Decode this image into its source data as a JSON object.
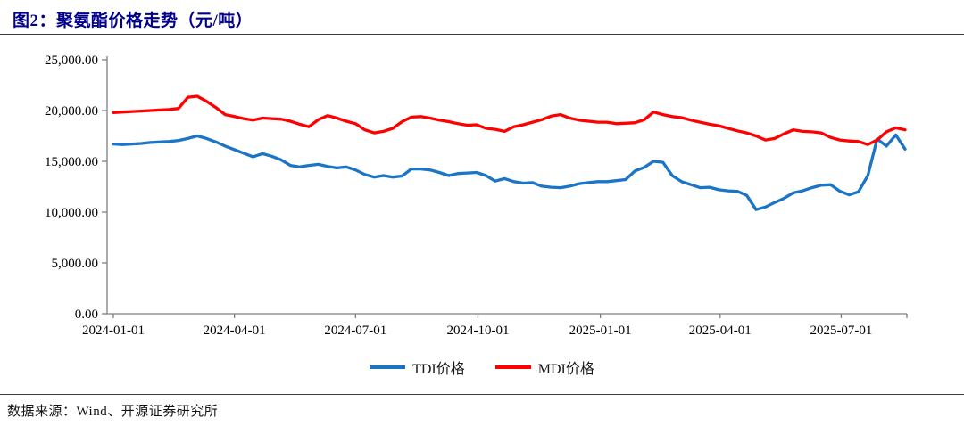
{
  "header": {
    "figure_title": "图2：聚氨酯价格走势（元/吨）"
  },
  "footer": {
    "source": "数据来源：Wind、开源证券研究所"
  },
  "chart_data": {
    "type": "line",
    "title": "聚氨酯价格走势",
    "unit": "元/吨",
    "grid": false,
    "legend_position": "bottom",
    "axis_color": "#7f7f7f",
    "label_color": "#000000",
    "ylim": [
      0,
      25000
    ],
    "y_ticks": [
      0,
      5000,
      10000,
      15000,
      20000,
      25000
    ],
    "x_ticks": [
      "2024-01-01",
      "2024-04-01",
      "2024-07-01",
      "2024-10-01",
      "2025-01-01",
      "2025-04-01",
      "2025-07-01"
    ],
    "x": [
      "2024-01-01",
      "2024-01-08",
      "2024-01-15",
      "2024-01-22",
      "2024-01-29",
      "2024-02-05",
      "2024-02-12",
      "2024-02-19",
      "2024-02-26",
      "2024-03-04",
      "2024-03-11",
      "2024-03-18",
      "2024-03-25",
      "2024-04-01",
      "2024-04-08",
      "2024-04-15",
      "2024-04-22",
      "2024-04-29",
      "2024-05-06",
      "2024-05-13",
      "2024-05-20",
      "2024-05-27",
      "2024-06-03",
      "2024-06-10",
      "2024-06-17",
      "2024-06-24",
      "2024-07-01",
      "2024-07-08",
      "2024-07-15",
      "2024-07-22",
      "2024-07-29",
      "2024-08-05",
      "2024-08-12",
      "2024-08-19",
      "2024-08-26",
      "2024-09-02",
      "2024-09-09",
      "2024-09-16",
      "2024-09-23",
      "2024-09-30",
      "2024-10-07",
      "2024-10-14",
      "2024-10-21",
      "2024-10-28",
      "2024-11-04",
      "2024-11-11",
      "2024-11-18",
      "2024-11-25",
      "2024-12-02",
      "2024-12-09",
      "2024-12-16",
      "2024-12-23",
      "2024-12-30",
      "2025-01-06",
      "2025-01-13",
      "2025-01-20",
      "2025-01-27",
      "2025-02-03",
      "2025-02-10",
      "2025-02-17",
      "2025-02-24",
      "2025-03-03",
      "2025-03-10",
      "2025-03-17",
      "2025-03-24",
      "2025-03-31",
      "2025-04-07",
      "2025-04-14",
      "2025-04-21",
      "2025-04-28",
      "2025-05-05",
      "2025-05-12",
      "2025-05-19",
      "2025-05-26",
      "2025-06-02",
      "2025-06-09",
      "2025-06-16",
      "2025-06-23",
      "2025-06-30",
      "2025-07-07",
      "2025-07-14",
      "2025-07-21",
      "2025-07-28",
      "2025-08-04",
      "2025-08-11",
      "2025-08-18"
    ],
    "series": [
      {
        "name": "TDI价格",
        "color": "#1B74C5",
        "values": [
          16700,
          16650,
          16700,
          16750,
          16850,
          16900,
          16950,
          17050,
          17250,
          17500,
          17250,
          16900,
          16500,
          16150,
          15800,
          15450,
          15750,
          15500,
          15150,
          14600,
          14450,
          14600,
          14700,
          14500,
          14350,
          14450,
          14150,
          13700,
          13450,
          13600,
          13450,
          13550,
          14250,
          14250,
          14150,
          13900,
          13600,
          13800,
          13850,
          13900,
          13600,
          13050,
          13300,
          13000,
          12850,
          12900,
          12550,
          12450,
          12400,
          12550,
          12800,
          12900,
          13000,
          13000,
          13100,
          13200,
          14050,
          14400,
          15000,
          14900,
          13600,
          13000,
          12700,
          12400,
          12450,
          12200,
          12100,
          12050,
          11650,
          10250,
          10500,
          10950,
          11350,
          11900,
          12100,
          12400,
          12650,
          12700,
          12050,
          11700,
          12000,
          13600,
          17200,
          16500,
          17600,
          16200
        ]
      },
      {
        "name": "MDI价格",
        "color": "#FF0000",
        "values": [
          19800,
          19850,
          19900,
          19950,
          20000,
          20050,
          20100,
          20200,
          21300,
          21400,
          20900,
          20300,
          19600,
          19400,
          19200,
          19050,
          19250,
          19200,
          19150,
          18950,
          18650,
          18400,
          19100,
          19500,
          19250,
          18950,
          18700,
          18100,
          17800,
          17950,
          18250,
          18900,
          19350,
          19400,
          19250,
          19050,
          18900,
          18700,
          18550,
          18600,
          18250,
          18150,
          17950,
          18400,
          18600,
          18850,
          19100,
          19450,
          19600,
          19250,
          19050,
          18950,
          18850,
          18850,
          18700,
          18750,
          18800,
          19100,
          19850,
          19600,
          19400,
          19300,
          19050,
          18850,
          18650,
          18500,
          18250,
          18000,
          17800,
          17500,
          17100,
          17250,
          17700,
          18100,
          17950,
          17900,
          17800,
          17350,
          17100,
          17000,
          16950,
          16650,
          17100,
          17900,
          18300,
          18100
        ]
      }
    ]
  }
}
